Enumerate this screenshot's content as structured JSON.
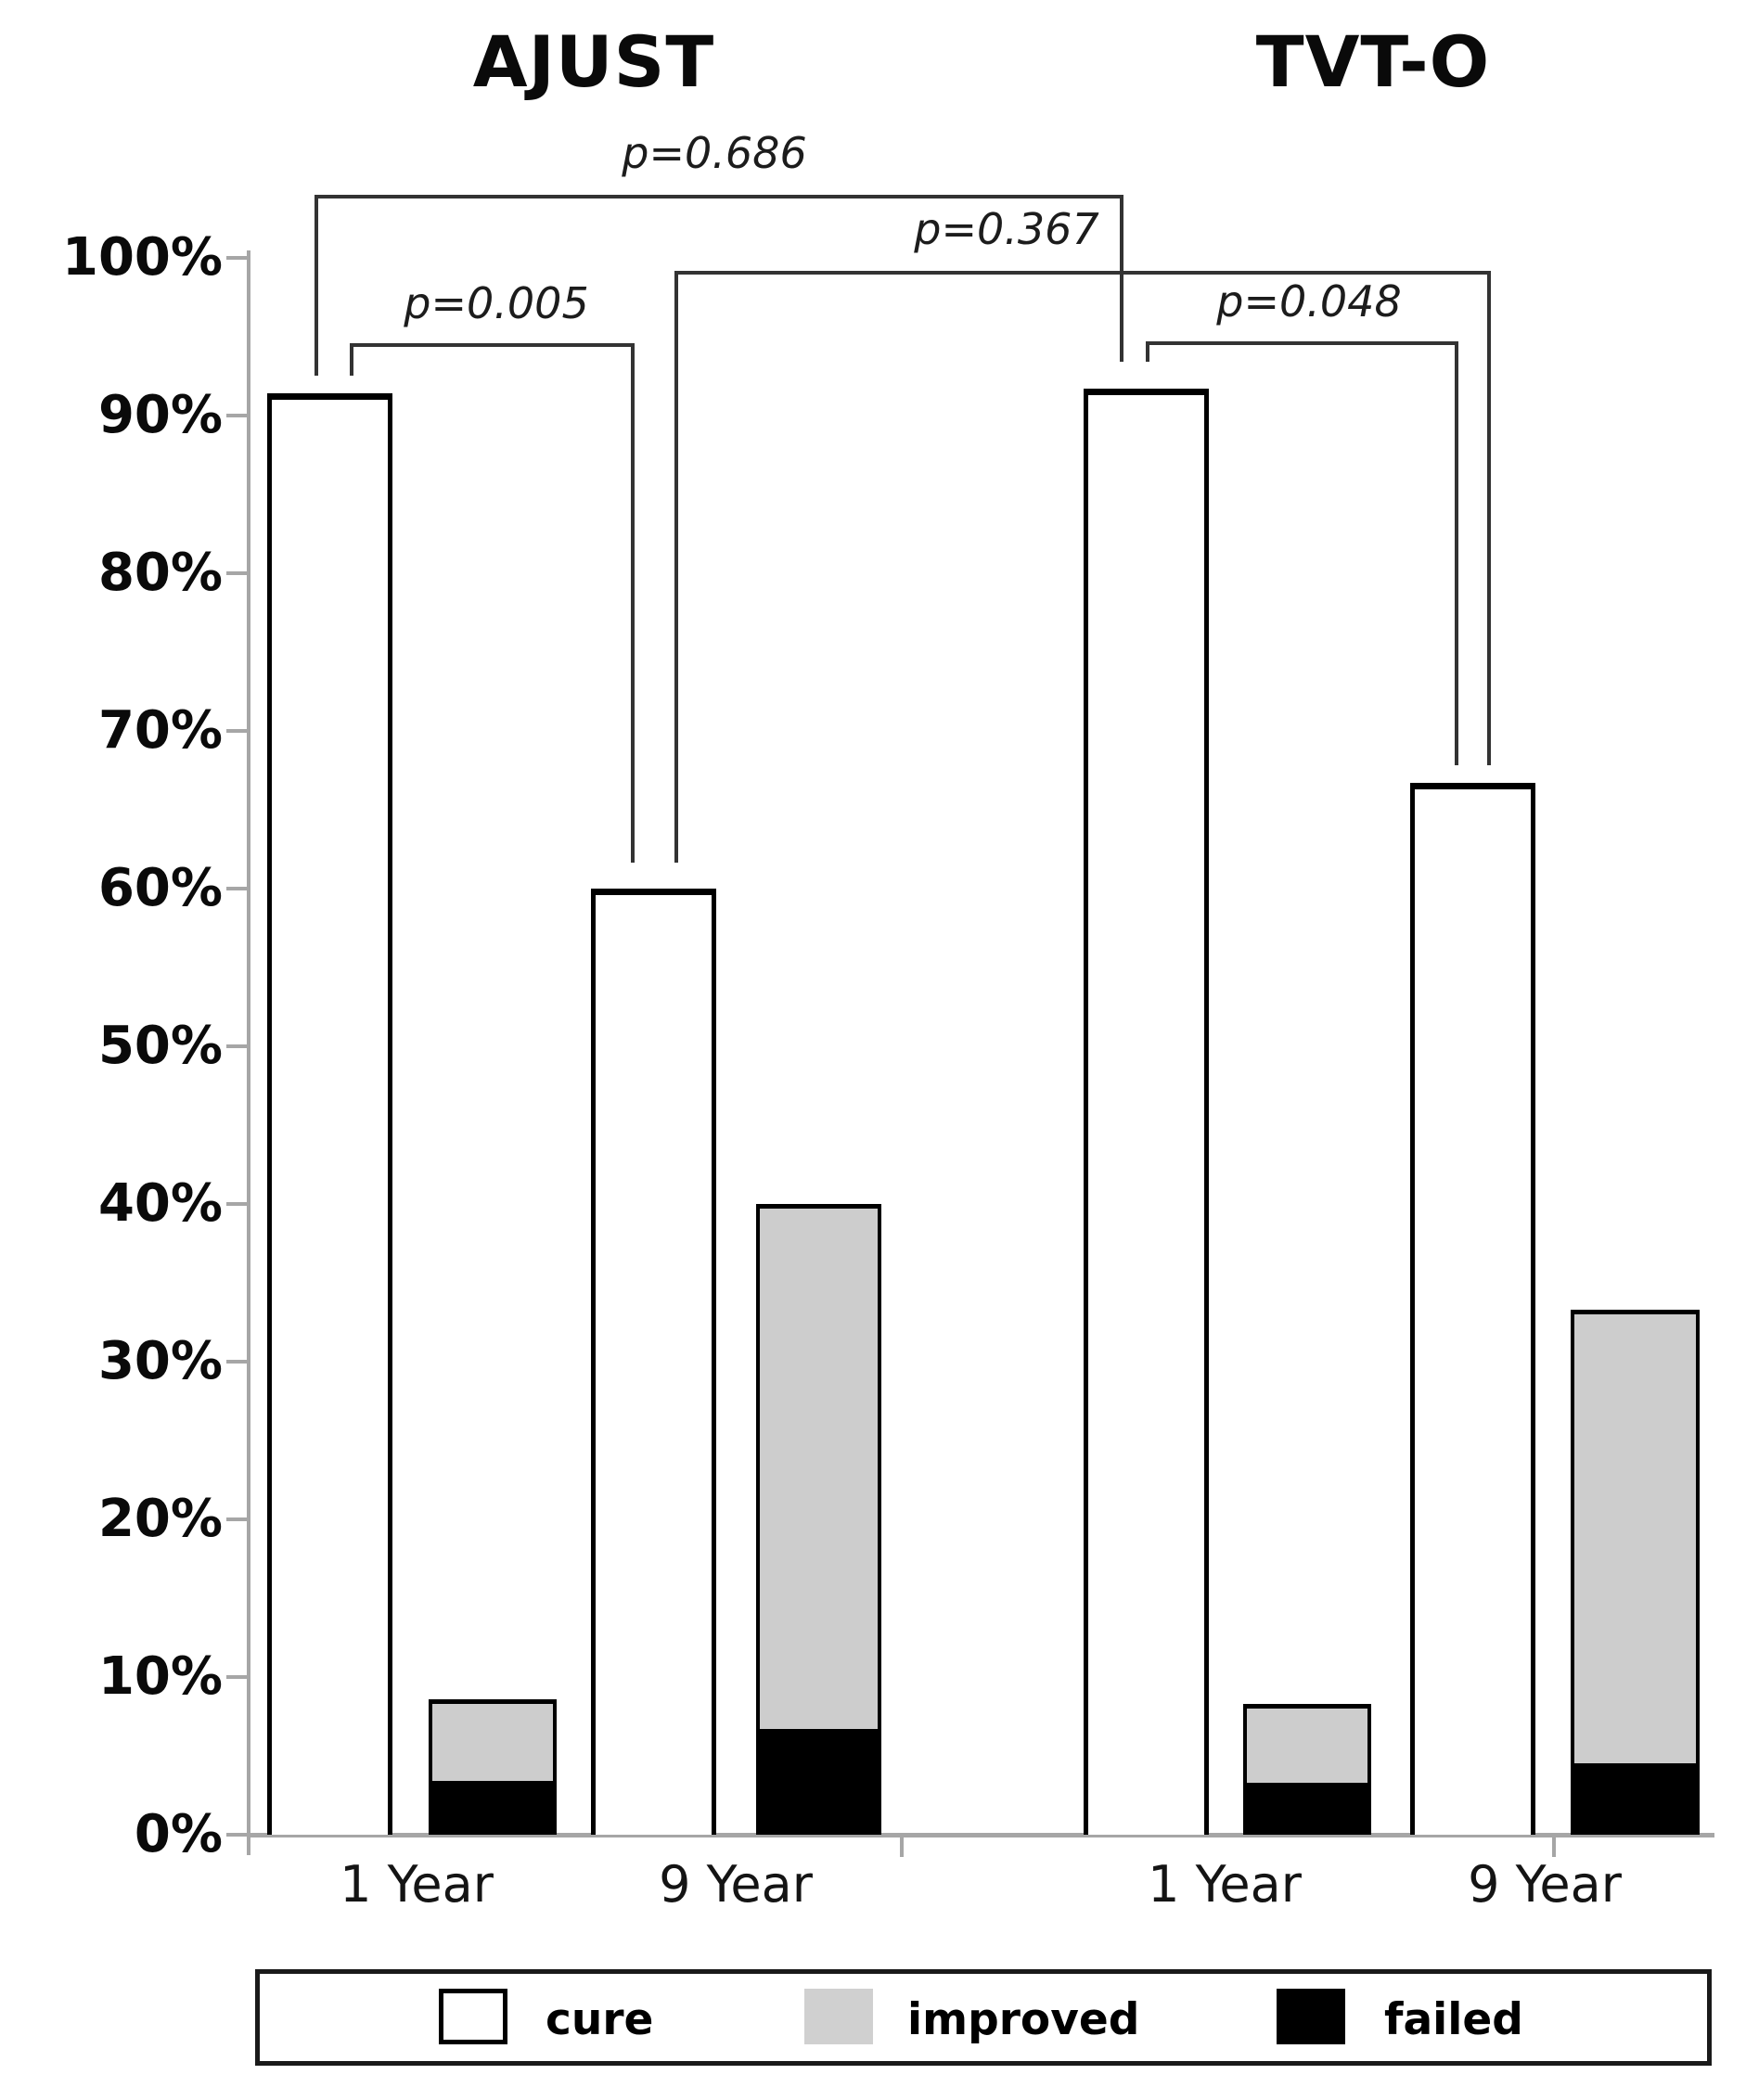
{
  "chart_data": {
    "type": "bar",
    "subtype": "grouped-stacked-columns",
    "title": "",
    "grid": false,
    "legend_position": "bottom",
    "y_axis": {
      "min": 0,
      "max": 100,
      "step": 10,
      "unit": "%",
      "tick_labels": [
        "0%",
        "10%",
        "20%",
        "30%",
        "40%",
        "50%",
        "60%",
        "70%",
        "80%",
        "90%",
        "100%"
      ]
    },
    "series_names": [
      "cure",
      "improved",
      "failed"
    ],
    "groups": [
      {
        "name": "AJUST",
        "categories": [
          {
            "label": "1 Year",
            "cure": 91.4,
            "improved": 5.2,
            "failed": 3.4
          },
          {
            "label": "9 Year",
            "cure": 60.0,
            "improved": 33.3,
            "failed": 6.7
          }
        ]
      },
      {
        "name": "TVT-O",
        "categories": [
          {
            "label": "1 Year",
            "cure": 91.7,
            "improved": 5.0,
            "failed": 3.3
          },
          {
            "label": "9 Year",
            "cure": 66.7,
            "improved": 28.8,
            "failed": 4.5
          }
        ]
      }
    ],
    "annotations": [
      {
        "label": "p=0.686",
        "compares": "AJUST 1 Year cure vs TVT-O 1 Year cure"
      },
      {
        "label": "p=0.367",
        "compares": "AJUST 9 Year cure vs TVT-O 9 Year cure"
      },
      {
        "label": "p=0.005",
        "compares": "AJUST 1 Year cure vs AJUST 9 Year cure"
      },
      {
        "label": "p=0.048",
        "compares": "TVT-O 1 Year cure vs TVT-O 9 Year cure"
      }
    ]
  },
  "legend": {
    "items": [
      {
        "label": "cure",
        "color": "#ffffff"
      },
      {
        "label": "improved",
        "color": "#d0d0d0"
      },
      {
        "label": "failed",
        "color": "#000000"
      }
    ]
  },
  "colors": {
    "bar_outline": "#000000",
    "improved_fill": "#cdcdcd",
    "axis": "#a6a6a6",
    "bracket": "#333333",
    "text": "#000000"
  }
}
